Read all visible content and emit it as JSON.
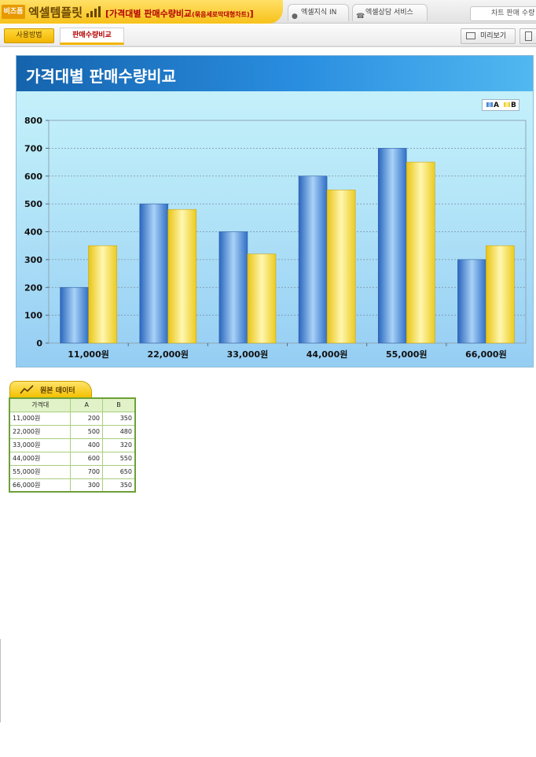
{
  "header": {
    "brand_tag": "비즈폼",
    "brand_name": "엑셀템플릿",
    "doc_title": "[가격대별 판매수량비교",
    "doc_title_sub": "(묶음세로막대형차트)",
    "doc_title_end": "]",
    "tab_knowledge": "엑셀지식 IN",
    "tab_consult": "엑셀상담 서비스",
    "search_value": "차트 판매 수량"
  },
  "toolbar": {
    "usage_label": "사용방법",
    "active_tab_label": "판매수량비교",
    "preview_label": "미리보기"
  },
  "chart_data": {
    "type": "bar",
    "title": "가격대별 판매수량비교",
    "categories": [
      "11,000원",
      "22,000원",
      "33,000원",
      "44,000원",
      "55,000원",
      "66,000원"
    ],
    "series": [
      {
        "name": "A",
        "values": [
          200,
          500,
          400,
          600,
          700,
          300
        ],
        "color": "#4f92dc"
      },
      {
        "name": "B",
        "values": [
          350,
          480,
          320,
          550,
          650,
          350
        ],
        "color": "#f7dc45"
      }
    ],
    "ylim": [
      0,
      800
    ],
    "yticks": [
      "0",
      "100",
      "200",
      "300",
      "400",
      "500",
      "600",
      "700",
      "800"
    ],
    "grid": true,
    "legend_position": "top-right",
    "xlabel": "",
    "ylabel": ""
  },
  "table": {
    "tab_label": "원본 데이터",
    "headers": [
      "가격대",
      "A",
      "B"
    ],
    "rows": [
      [
        "11,000원",
        "200",
        "350"
      ],
      [
        "22,000원",
        "500",
        "480"
      ],
      [
        "33,000원",
        "400",
        "320"
      ],
      [
        "44,000원",
        "600",
        "550"
      ],
      [
        "55,000원",
        "700",
        "650"
      ],
      [
        "66,000원",
        "300",
        "350"
      ]
    ]
  }
}
